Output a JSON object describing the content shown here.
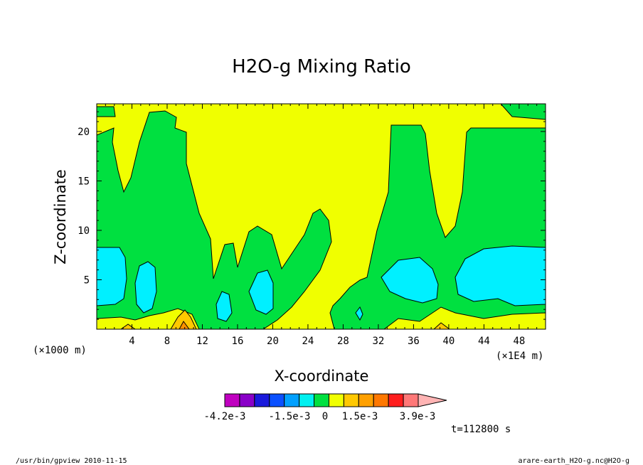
{
  "chart_data": {
    "type": "contour",
    "title": "H2O-g Mixing Ratio",
    "xlabel": "X-coordinate",
    "ylabel": "Z-coordinate",
    "x_scale_note": "(×1E4 m)",
    "y_scale_note": "(×1000 m)",
    "xlim": [
      0,
      51
    ],
    "ylim": [
      0,
      22.8
    ],
    "x_ticks": [
      "4",
      "8",
      "12",
      "16",
      "20",
      "24",
      "28",
      "32",
      "36",
      "40",
      "44",
      "48"
    ],
    "x_tick_values": [
      4,
      8,
      12,
      16,
      20,
      24,
      28,
      32,
      36,
      40,
      44,
      48
    ],
    "y_ticks": [
      "5",
      "10",
      "15",
      "20"
    ],
    "y_tick_values": [
      5,
      10,
      15,
      20
    ],
    "time_label": "t=112800 s",
    "colorbar": {
      "colors": [
        "#c000c0",
        "#8a00c8",
        "#1a1adc",
        "#0a50ff",
        "#00a0ff",
        "#00f0f0",
        "#00e040",
        "#f0ff00",
        "#ffc800",
        "#ffa000",
        "#ff7800",
        "#ff1e1e",
        "#ff7878",
        "#ffb4b4"
      ],
      "labels": [
        "-4.2e-3",
        "-1.5e-3",
        "0",
        "1.5e-3",
        "3.9e-3"
      ]
    },
    "regions": {
      "yellow": "#f0ff00",
      "green": "#00e040",
      "cyan": "#00f0ff",
      "orange": "#ffc800",
      "orange_dark": "#ff9000"
    }
  },
  "footer": {
    "left": "/usr/bin/gpview  2010-11-15",
    "right": "arare-earth_H2O-g.nc@H2O-g"
  }
}
